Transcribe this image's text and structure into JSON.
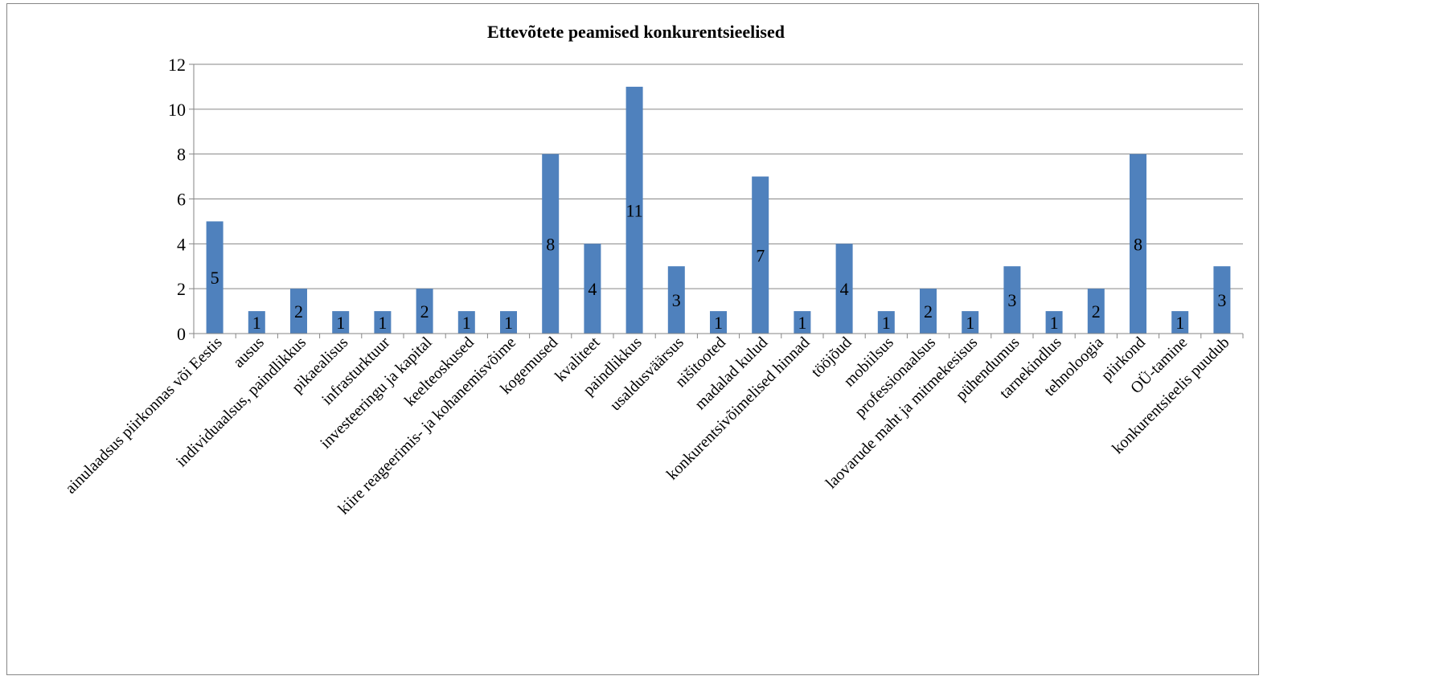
{
  "chart_data": {
    "type": "bar",
    "title": "Ettevõtete peamised konkurentsieelised",
    "xlabel": "",
    "ylabel": "",
    "ylim": [
      0,
      12
    ],
    "yticks": [
      0,
      2,
      4,
      6,
      8,
      10,
      12
    ],
    "grid": true,
    "legend": "none",
    "bar_color": "#4F81BD",
    "categories": [
      "ainulaadsus piirkonnas või Eestis",
      "ausus",
      "individuaalsus, paindlikkus",
      "pikaealisus",
      "infrasturktuur",
      "investeeringu ja kapital",
      "keelteoskused",
      "kiire reageerimis- ja kohanemisvõime",
      "kogemused",
      "kvaliteet",
      "paindlikkus",
      "usaldusväärsus",
      "nišitooted",
      "madalad kulud",
      "konkurentsivõimelised hinnad",
      "tööjõud",
      "mobiilsus",
      "professionaalsus",
      "laovarude maht ja mitmekesisus",
      "pühendumus",
      "tarnekindlus",
      "tehnoloogia",
      "piirkond",
      "OÜ-tamine",
      "konkurentsieelis puudub"
    ],
    "values": [
      5,
      1,
      2,
      1,
      1,
      2,
      1,
      1,
      8,
      4,
      11,
      3,
      1,
      7,
      1,
      4,
      1,
      2,
      1,
      3,
      1,
      2,
      8,
      1,
      3
    ]
  }
}
